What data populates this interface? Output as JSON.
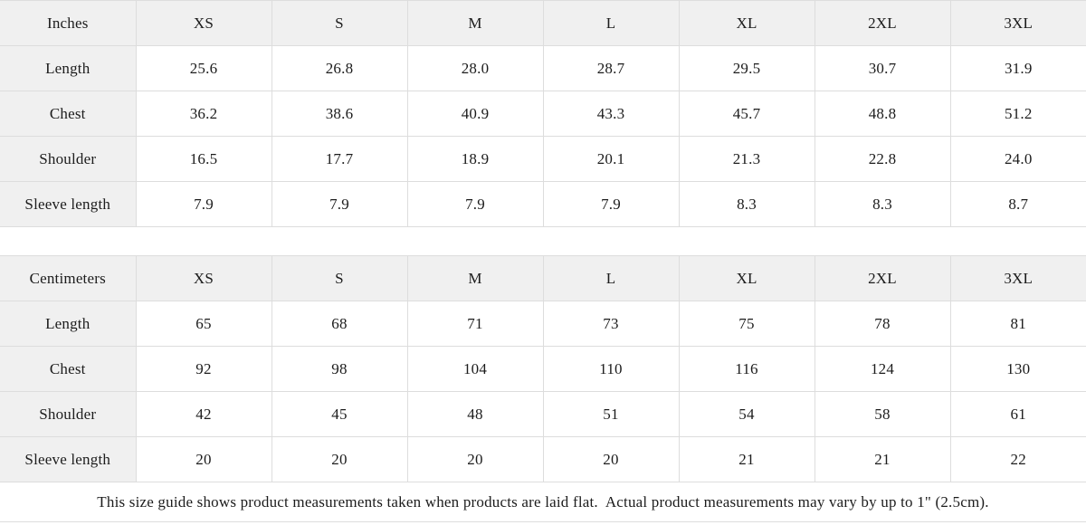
{
  "colors": {
    "shaded_cell_background": "#f0f0f0",
    "cell_background": "#ffffff",
    "border": "#dddddd",
    "text": "#1c1c1c"
  },
  "size_guide": {
    "tables": [
      {
        "unit": "Inches",
        "sizes": [
          "XS",
          "S",
          "M",
          "L",
          "XL",
          "2XL",
          "3XL"
        ],
        "rows": [
          {
            "label": "Length",
            "values": [
              "25.6",
              "26.8",
              "28.0",
              "28.7",
              "29.5",
              "30.7",
              "31.9"
            ]
          },
          {
            "label": "Chest",
            "values": [
              "36.2",
              "38.6",
              "40.9",
              "43.3",
              "45.7",
              "48.8",
              "51.2"
            ]
          },
          {
            "label": "Shoulder",
            "values": [
              "16.5",
              "17.7",
              "18.9",
              "20.1",
              "21.3",
              "22.8",
              "24.0"
            ]
          },
          {
            "label": "Sleeve length",
            "values": [
              "7.9",
              "7.9",
              "7.9",
              "7.9",
              "8.3",
              "8.3",
              "8.7"
            ]
          }
        ]
      },
      {
        "unit": "Centimeters",
        "sizes": [
          "XS",
          "S",
          "M",
          "L",
          "XL",
          "2XL",
          "3XL"
        ],
        "rows": [
          {
            "label": "Length",
            "values": [
              "65",
              "68",
              "71",
              "73",
              "75",
              "78",
              "81"
            ]
          },
          {
            "label": "Chest",
            "values": [
              "92",
              "98",
              "104",
              "110",
              "116",
              "124",
              "130"
            ]
          },
          {
            "label": "Shoulder",
            "values": [
              "42",
              "45",
              "48",
              "51",
              "54",
              "58",
              "61"
            ]
          },
          {
            "label": "Sleeve length",
            "values": [
              "20",
              "20",
              "20",
              "20",
              "21",
              "21",
              "22"
            ]
          }
        ]
      }
    ],
    "note": "This size guide shows product measurements taken when products are laid flat.  Actual product measurements may vary by up to 1\" (2.5cm)."
  }
}
